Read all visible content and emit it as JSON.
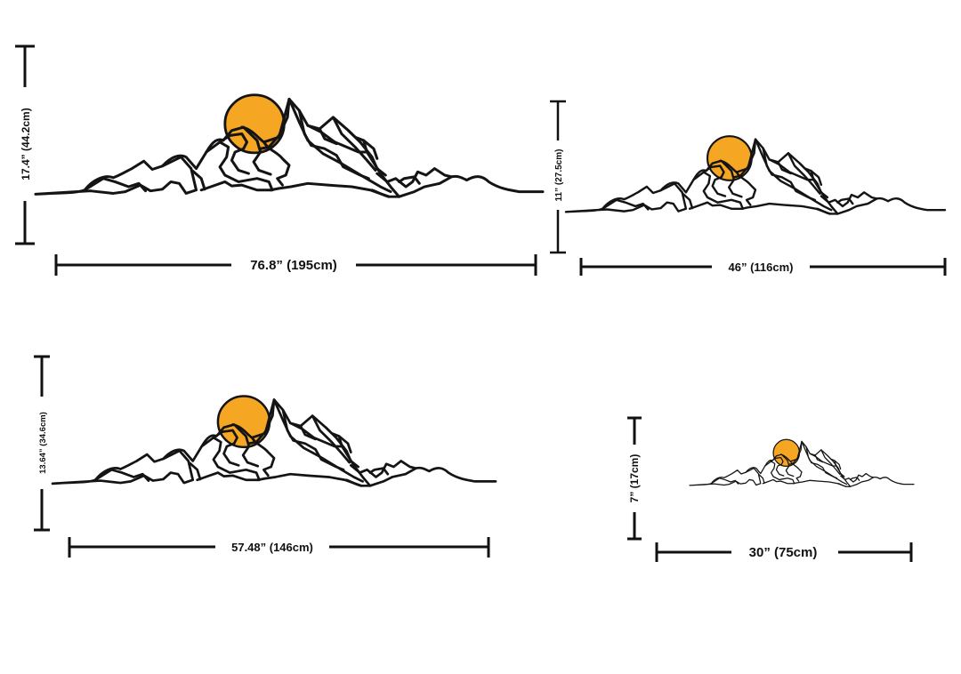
{
  "colors": {
    "sun": "#F5A623",
    "line": "#141414",
    "background": "#FFFFFF"
  },
  "sizes": [
    {
      "id": "xl",
      "width_label": "76.8” (195cm)",
      "height_label": "17.4” (44.2cm)"
    },
    {
      "id": "m",
      "width_label": "46” (116cm)",
      "height_label": "11” (27.5cm)"
    },
    {
      "id": "l",
      "width_label": "57.48” (146cm)",
      "height_label": "13.64” (34.6cm)"
    },
    {
      "id": "s",
      "width_label": "30” (75cm)",
      "height_label": "7” (17cm)"
    }
  ]
}
